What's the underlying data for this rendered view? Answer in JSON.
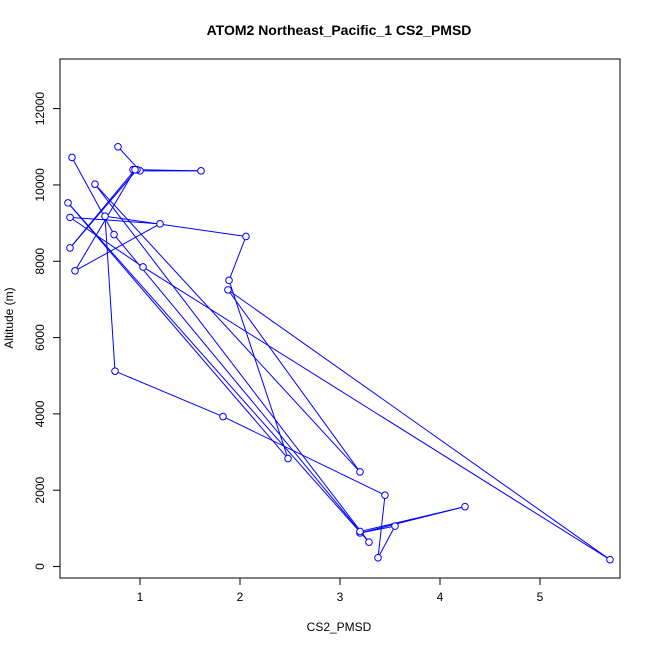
{
  "chart_data": {
    "type": "line",
    "title": "ATOM2 Northeast_Pacific_1 CS2_PMSD",
    "xlabel": "CS2_PMSD",
    "ylabel": "Altitude (m)",
    "xlim": [
      0.2,
      5.8
    ],
    "ylim": [
      -300,
      13300
    ],
    "x_ticks": [
      1,
      2,
      3,
      4,
      5
    ],
    "y_ticks": [
      0,
      2000,
      4000,
      6000,
      8000,
      10000,
      12000
    ],
    "grid": false,
    "series_color": "#0000ff",
    "marker": "open-circle",
    "series": [
      {
        "points": [
          [
            0.78,
            11000
          ],
          [
            1.0,
            10370
          ],
          [
            1.61,
            10370
          ],
          [
            0.93,
            10400
          ],
          [
            0.97,
            10400
          ],
          [
            0.3,
            8350
          ],
          [
            0.95,
            10400
          ],
          [
            0.35,
            7750
          ],
          [
            1.2,
            8980
          ],
          [
            0.3,
            9150
          ],
          [
            1.03,
            7850
          ],
          [
            5.7,
            180
          ],
          [
            1.88,
            7250
          ],
          [
            3.2,
            2480
          ],
          [
            0.55,
            10020
          ],
          [
            3.29,
            640
          ],
          [
            0.28,
            9530
          ],
          [
            2.48,
            2830
          ],
          [
            1.89,
            7500
          ],
          [
            2.06,
            8650
          ],
          [
            0.65,
            9180
          ],
          [
            0.75,
            5120
          ],
          [
            1.83,
            3930
          ],
          [
            3.45,
            1870
          ],
          [
            3.38,
            230
          ],
          [
            3.55,
            1060
          ],
          [
            3.2,
            880
          ],
          [
            4.25,
            1570
          ],
          [
            3.2,
            920
          ],
          [
            0.74,
            8700
          ],
          [
            0.32,
            10720
          ]
        ]
      }
    ]
  }
}
